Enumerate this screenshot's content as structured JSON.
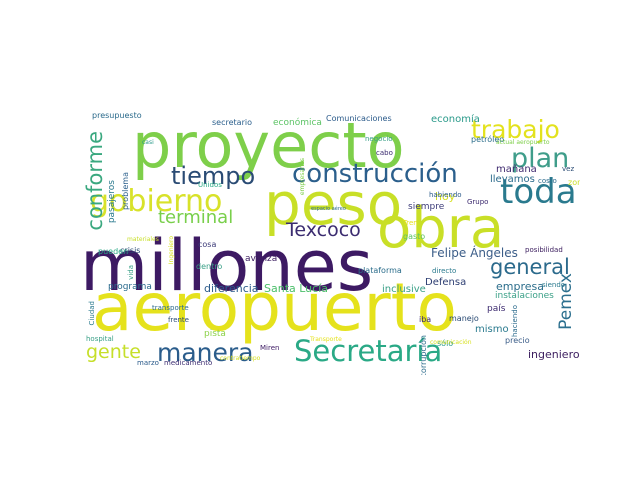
{
  "words": [
    {
      "text": "millones",
      "color": "#3d1a63"
    },
    {
      "text": "aeropuerto",
      "color": "#e5e21c"
    },
    {
      "text": "proyecto",
      "color": "#7ecf4a"
    },
    {
      "text": "peso",
      "color": "#c8df27"
    },
    {
      "text": "obra",
      "color": "#c9df27"
    },
    {
      "text": "toda",
      "color": "#2a7a8e"
    },
    {
      "text": "construcción",
      "color": "#2b5f8c"
    },
    {
      "text": "Secretaría",
      "color": "#2aa986"
    },
    {
      "text": "gobierno",
      "color": "#d8e22a"
    },
    {
      "text": "trabajo",
      "color": "#e3e21e"
    },
    {
      "text": "plan",
      "color": "#3f9d8a"
    },
    {
      "text": "tiempo",
      "color": "#2a4b74"
    },
    {
      "text": "manera",
      "color": "#2a5c8b"
    },
    {
      "text": "conforme",
      "color": "#3aa87f"
    },
    {
      "text": "terminal",
      "color": "#79cf4b"
    },
    {
      "text": "Texcoco",
      "color": "#3b2c70"
    },
    {
      "text": "general",
      "color": "#2b6a8c"
    },
    {
      "text": "gente",
      "color": "#c6df2a"
    },
    {
      "text": "Pemex",
      "color": "#2b6f8e"
    },
    {
      "text": "Felipe Ángeles",
      "color": "#3b5d88"
    },
    {
      "text": "diferencia",
      "color": "#2a5a8a"
    },
    {
      "text": "Santa Lucía",
      "color": "#4bbf6a"
    },
    {
      "text": "empresa",
      "color": "#2b6d8b"
    },
    {
      "text": "ingeniero",
      "color": "#3b1d5e"
    },
    {
      "text": "mañana",
      "color": "#3f2a6f"
    },
    {
      "text": "llevamos",
      "color": "#2a6a8b"
    },
    {
      "text": "hoy",
      "color": "#d7e01f"
    },
    {
      "text": "siempre",
      "color": "#3b3a78"
    },
    {
      "text": "avanza",
      "color": "#3c1e60"
    },
    {
      "text": "programa",
      "color": "#2a6a8c"
    },
    {
      "text": "inclusive",
      "color": "#3aa087"
    },
    {
      "text": "Defensa",
      "color": "#2d3e72"
    },
    {
      "text": "mismo",
      "color": "#2a7a8e"
    },
    {
      "text": "país",
      "color": "#3d2b70"
    },
    {
      "text": "pista",
      "color": "#8dd24a"
    },
    {
      "text": "economía",
      "color": "#2a9a8a"
    },
    {
      "text": "Comunicaciones",
      "color": "#2a5a8a"
    },
    {
      "text": "económica",
      "color": "#5dc466"
    },
    {
      "text": "secretario",
      "color": "#2b5f8c"
    },
    {
      "text": "presupuesto",
      "color": "#2a6a8b"
    },
    {
      "text": "pasajeros",
      "color": "#2a7a8e"
    },
    {
      "text": "problema",
      "color": "#2b5f8c"
    },
    {
      "text": "crisis",
      "color": "#2a4b74"
    },
    {
      "text": "pueden",
      "color": "#2aa986"
    },
    {
      "text": "cosa",
      "color": "#3b3a78"
    },
    {
      "text": "dentro",
      "color": "#3aa087"
    },
    {
      "text": "plataforma",
      "color": "#2b6d8b"
    },
    {
      "text": "directo",
      "color": "#2a7a8e"
    },
    {
      "text": "posibilidad",
      "color": "#3b1d5e"
    },
    {
      "text": "instalaciones",
      "color": "#3aa087"
    },
    {
      "text": "precio",
      "color": "#3b5d88"
    },
    {
      "text": "sólo",
      "color": "#2a9a8a"
    },
    {
      "text": "corrupción",
      "color": "#2a6a8b"
    },
    {
      "text": "iba",
      "color": "#3b2c70"
    },
    {
      "text": "frente",
      "color": "#2a4b74"
    },
    {
      "text": "hospital",
      "color": "#3aa087"
    },
    {
      "text": "marzo",
      "color": "#2a5a8a"
    },
    {
      "text": "medicamento",
      "color": "#3b2c70"
    },
    {
      "text": "contratiempo",
      "color": "#d7e01f"
    },
    {
      "text": "Miren",
      "color": "#3d1a63"
    },
    {
      "text": "transporte",
      "color": "#2a6a8c"
    },
    {
      "text": "Ciudad",
      "color": "#2a7a8e"
    },
    {
      "text": "vida",
      "color": "#3aa087"
    },
    {
      "text": "materiales",
      "color": "#c8df27"
    },
    {
      "text": "casi",
      "color": "#2a9a8a"
    },
    {
      "text": "Unidos",
      "color": "#2aa986"
    },
    {
      "text": "empresarios",
      "color": "#7ecf4a"
    },
    {
      "text": "negocio",
      "color": "#3aa087"
    },
    {
      "text": "cabo",
      "color": "#3b2c70"
    },
    {
      "text": "petróleo",
      "color": "#2b6d8b"
    },
    {
      "text": "actual aeropuerto",
      "color": "#7ecf4a"
    },
    {
      "text": "vez",
      "color": "#2a4b74"
    },
    {
      "text": "costo",
      "color": "#2a6a8c"
    },
    {
      "text": "zona",
      "color": "#c8df27"
    },
    {
      "text": "habiendo",
      "color": "#2a5a8a"
    },
    {
      "text": "Grupo",
      "color": "#3d2b70"
    },
    {
      "text": "espacio aéreo",
      "color": "#2a6a8b"
    },
    {
      "text": "Tren",
      "color": "#e5e21c"
    },
    {
      "text": "gasto",
      "color": "#5dc466"
    },
    {
      "text": "Ingeniero",
      "color": "#d7e01f"
    },
    {
      "text": "comunicación",
      "color": "#d7e01f"
    },
    {
      "text": "siendo",
      "color": "#2a7a8e"
    },
    {
      "text": "haciendo",
      "color": "#2a6a8c"
    },
    {
      "text": "manejo",
      "color": "#2a4b74"
    },
    {
      "text": "Transporte",
      "color": "#e5e21c"
    }
  ]
}
